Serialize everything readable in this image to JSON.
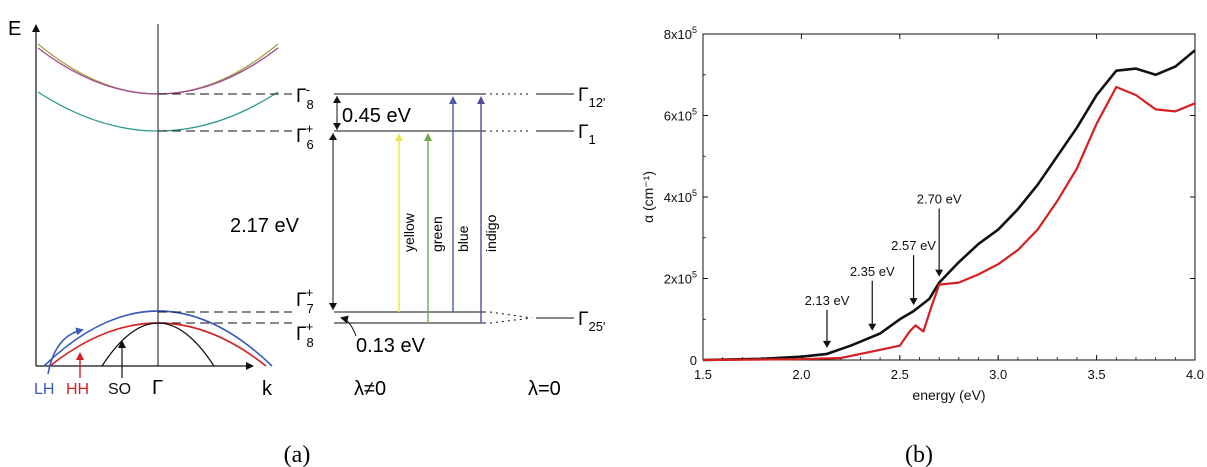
{
  "panel_a": {
    "caption": "(a)",
    "axis_e": "E",
    "axis_k": "k",
    "gamma": "Γ",
    "curve_labels": {
      "lh": "LH",
      "hh": "HH",
      "so": "SO"
    },
    "levels": {
      "g8_upper": {
        "sym": "Γ",
        "sub": "8",
        "sup": "-"
      },
      "g6": {
        "sym": "Γ",
        "sub": "6",
        "sup": "+"
      },
      "g7": {
        "sym": "Γ",
        "sub": "7",
        "sup": "+"
      },
      "g8_lower": {
        "sym": "Γ",
        "sub": "8",
        "sup": "+"
      },
      "g12": {
        "sym": "Γ",
        "sub": "12'"
      },
      "g1": {
        "sym": "Γ",
        "sub": "1"
      },
      "g25": {
        "sym": "Γ",
        "sub": "25'"
      }
    },
    "energies": {
      "upper_gap": "0.45 eV",
      "main_gap": "2.17 eV",
      "lower_gap": "0.13 eV"
    },
    "transitions": [
      {
        "label": "yellow",
        "color": "#e8e84a"
      },
      {
        "label": "green",
        "color": "#6aab4a"
      },
      {
        "label": "blue",
        "color": "#4a5aa8"
      },
      {
        "label": "indigo",
        "color": "#5a4aa0"
      }
    ],
    "lambda_left": "λ≠0",
    "lambda_right": "λ=0"
  },
  "panel_b": {
    "caption": "(b)",
    "annotations": [
      "2.13 eV",
      "2.35 eV",
      "2.57 eV",
      "2.70 eV"
    ]
  },
  "chart_data": {
    "type": "line",
    "title": "",
    "xlabel": "energy (eV)",
    "ylabel": "α (cm⁻¹)",
    "xlim": [
      1.5,
      4.0
    ],
    "ylim": [
      0,
      800000
    ],
    "x_ticks": [
      "1.5",
      "2.0",
      "2.5",
      "3.0",
      "3.5",
      "4.0"
    ],
    "y_ticks": [
      {
        "base": "0",
        "exp": ""
      },
      {
        "base": "2x10",
        "exp": "5"
      },
      {
        "base": "4x10",
        "exp": "5"
      },
      {
        "base": "6x10",
        "exp": "5"
      },
      {
        "base": "8x10",
        "exp": "5"
      }
    ],
    "grid": false,
    "series": [
      {
        "color": "#111111",
        "x": [
          1.5,
          1.8,
          2.0,
          2.13,
          2.25,
          2.35,
          2.4,
          2.5,
          2.57,
          2.65,
          2.7,
          2.8,
          2.9,
          3.0,
          3.1,
          3.2,
          3.3,
          3.4,
          3.5,
          3.6,
          3.7,
          3.8,
          3.9,
          4.0
        ],
        "y": [
          0,
          3000,
          8000,
          15000,
          35000,
          55000,
          65000,
          100000,
          120000,
          150000,
          190000,
          240000,
          285000,
          320000,
          370000,
          430000,
          500000,
          570000,
          650000,
          710000,
          715000,
          700000,
          720000,
          760000
        ]
      },
      {
        "color": "#d42020",
        "x": [
          1.5,
          2.0,
          2.2,
          2.3,
          2.4,
          2.5,
          2.55,
          2.58,
          2.62,
          2.66,
          2.7,
          2.8,
          2.9,
          3.0,
          3.1,
          3.2,
          3.3,
          3.4,
          3.5,
          3.6,
          3.7,
          3.8,
          3.9,
          4.0
        ],
        "y": [
          0,
          2000,
          5000,
          15000,
          25000,
          35000,
          70000,
          85000,
          70000,
          130000,
          185000,
          190000,
          210000,
          235000,
          270000,
          320000,
          390000,
          470000,
          580000,
          670000,
          650000,
          615000,
          610000,
          630000
        ]
      }
    ],
    "annotations": [
      {
        "text": "2.13 eV",
        "x": 2.13
      },
      {
        "text": "2.35 eV",
        "x": 2.36
      },
      {
        "text": "2.57 eV",
        "x": 2.57
      },
      {
        "text": "2.70 eV",
        "x": 2.7
      }
    ]
  }
}
